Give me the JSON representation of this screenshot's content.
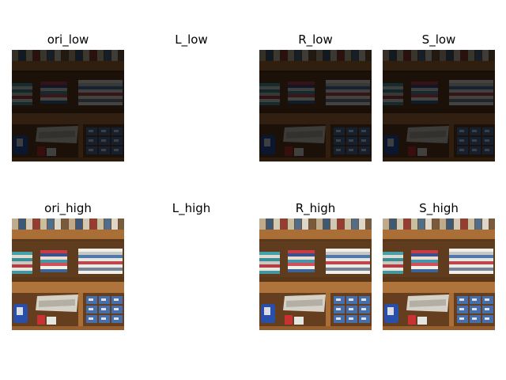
{
  "figure": {
    "panels": [
      {
        "id": "ori_low",
        "title": "ori_low",
        "variant": "low",
        "empty": false
      },
      {
        "id": "L_low",
        "title": "L_low",
        "variant": "empty",
        "empty": true
      },
      {
        "id": "R_low",
        "title": "R_low",
        "variant": "low",
        "empty": false
      },
      {
        "id": "S_low",
        "title": "S_low",
        "variant": "low",
        "empty": false
      },
      {
        "id": "ori_high",
        "title": "ori_high",
        "variant": "high",
        "empty": false
      },
      {
        "id": "L_high",
        "title": "L_high",
        "variant": "empty",
        "empty": true
      },
      {
        "id": "R_high",
        "title": "R_high",
        "variant": "high",
        "empty": false
      },
      {
        "id": "S_high",
        "title": "S_high",
        "variant": "high",
        "empty": false
      }
    ]
  }
}
